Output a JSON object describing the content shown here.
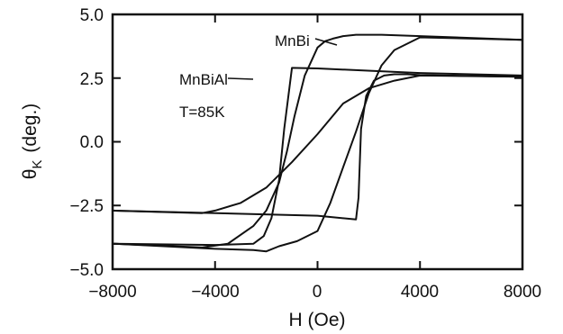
{
  "chart_data": {
    "type": "line",
    "title": "",
    "xlabel": "H (Oe)",
    "ylabel_symbol": "θ",
    "ylabel_subscript": "K",
    "ylabel_unit": "(deg.)",
    "xlim": [
      -8000,
      8000
    ],
    "ylim": [
      -5.0,
      5.0
    ],
    "xticks": [
      -8000,
      -4000,
      0,
      4000,
      8000
    ],
    "yticks": [
      -5.0,
      -2.5,
      0.0,
      2.5,
      5.0
    ],
    "xtick_labels": [
      "−8000",
      "−4000",
      "0",
      "4000",
      "8000"
    ],
    "ytick_labels": [
      "−5.0",
      "−2.5",
      "0.0",
      "2.5",
      "5.0"
    ],
    "grid": false,
    "annotations": {
      "mnbi": "MnBi",
      "mnbial": "MnBiAl",
      "temperature": "T=85K"
    },
    "series": [
      {
        "name": "MnBi",
        "branches": [
          {
            "x": [
              -8000,
              -4500,
              -3500,
              -2500,
              -2000,
              -1500,
              -1200,
              -900,
              -500,
              0,
              300,
              600,
              800,
              1000,
              1500,
              2500,
              4000,
              8000
            ],
            "y": [
              -4.0,
              -4.15,
              -4.0,
              -3.3,
              -2.7,
              -1.6,
              -0.4,
              1.0,
              2.6,
              3.7,
              3.95,
              4.05,
              4.1,
              4.15,
              4.2,
              4.2,
              4.15,
              4.0
            ]
          },
          {
            "x": [
              -8000,
              -4000,
              -2500,
              -2000,
              -1500,
              -800,
              0,
              500,
              1000,
              1500,
              2000,
              2500,
              3000,
              4000,
              8000
            ],
            "y": [
              -4.0,
              -4.2,
              -4.25,
              -4.3,
              -4.1,
              -3.9,
              -3.5,
              -2.4,
              -1.0,
              0.4,
              1.9,
              3.0,
              3.6,
              4.1,
              4.0
            ]
          }
        ]
      },
      {
        "name": "MnBiAl",
        "branches": [
          {
            "x": [
              -8000,
              -4500,
              -4000,
              -3000,
              -2000,
              -1000,
              0,
              500,
              1000,
              2000,
              3000,
              4000,
              8000
            ],
            "y": [
              -2.7,
              -2.8,
              -2.7,
              -2.4,
              -1.8,
              -0.8,
              0.3,
              0.9,
              1.5,
              2.1,
              2.4,
              2.6,
              2.55
            ]
          },
          {
            "x": [
              -8000,
              -4000,
              -2500,
              -2100,
              -1800,
              -1500,
              -1300,
              -1000,
              0,
              4000,
              8000
            ],
            "y": [
              -4.0,
              -4.05,
              -4.0,
              -3.7,
              -3.0,
              -1.5,
              0.5,
              2.9,
              2.88,
              2.7,
              2.6
            ]
          },
          {
            "x": [
              -8000,
              0,
              1500,
              1600,
              1700,
              1900,
              2200,
              2600,
              3000,
              3500,
              4000,
              8000
            ],
            "y": [
              -2.7,
              -2.9,
              -3.05,
              -2.2,
              0.5,
              1.8,
              2.4,
              2.6,
              2.65,
              2.65,
              2.62,
              2.55
            ]
          }
        ]
      }
    ]
  }
}
